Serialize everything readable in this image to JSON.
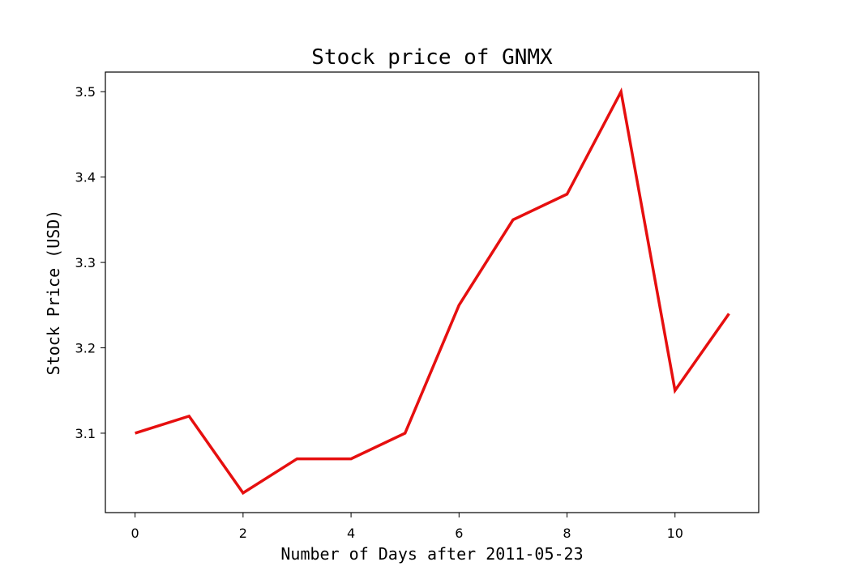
{
  "chart_data": {
    "type": "line",
    "title": "Stock price of GNMX",
    "xlabel": "Number of Days after 2011-05-23",
    "ylabel": "Stock Price (USD)",
    "x": [
      0,
      1,
      2,
      3,
      4,
      5,
      6,
      7,
      8,
      9,
      10,
      11
    ],
    "series": [
      {
        "values": [
          3.1,
          3.12,
          3.03,
          3.07,
          3.07,
          3.1,
          3.25,
          3.35,
          3.38,
          3.5,
          3.15,
          3.24
        ],
        "color": "#e60f0f"
      }
    ],
    "xticks": [
      0,
      2,
      4,
      6,
      8,
      10
    ],
    "xtick_labels": [
      "0",
      "2",
      "4",
      "6",
      "8",
      "10"
    ],
    "yticks": [
      3.1,
      3.2,
      3.3,
      3.4,
      3.5
    ],
    "ytick_labels": [
      "3.1",
      "3.2",
      "3.3",
      "3.4",
      "3.5"
    ],
    "xlim": [
      -0.55,
      11.55
    ],
    "ylim": [
      3.007,
      3.523
    ],
    "grid": false
  }
}
